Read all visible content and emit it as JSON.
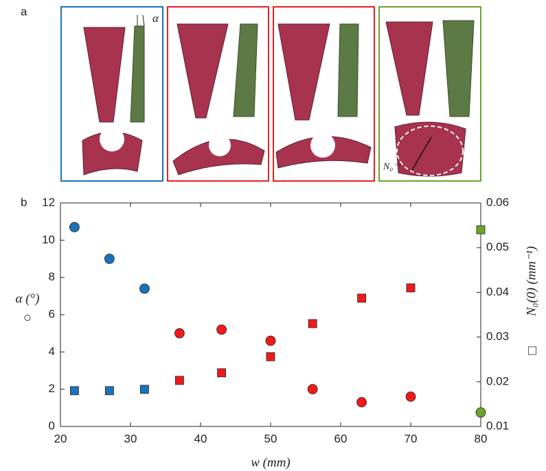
{
  "panel_a": {
    "label": "a",
    "alpha_label": "α",
    "n0_label": "N₀⁻¹"
  },
  "chart_data": {
    "type": "scatter",
    "panel_label": "b",
    "xlabel": "w (mm)",
    "ylabel": "α (°)",
    "ylabel_marker": "○",
    "y2label": "N₀(0) (mm⁻¹)",
    "y2label_marker": "□",
    "x": [
      22,
      27,
      32,
      37,
      43,
      50,
      56,
      63,
      70,
      80
    ],
    "series": [
      {
        "marker": "circle",
        "axis": "y",
        "values": [
          10.7,
          9.0,
          7.4,
          5.0,
          5.2,
          4.6,
          2.0,
          1.3,
          1.6,
          0.75
        ],
        "colors": [
          "#1a72bb",
          "#1a72bb",
          "#1a72bb",
          "#f01a1a",
          "#f01a1a",
          "#f01a1a",
          "#f01a1a",
          "#f01a1a",
          "#f01a1a",
          "#6aa22e"
        ]
      },
      {
        "marker": "square",
        "axis": "y2",
        "values": [
          0.018,
          0.018,
          0.0183,
          0.0203,
          0.022,
          0.0256,
          0.033,
          0.0387,
          0.041,
          0.054
        ],
        "colors": [
          "#1a72bb",
          "#1a72bb",
          "#1a72bb",
          "#f01a1a",
          "#f01a1a",
          "#f01a1a",
          "#f01a1a",
          "#f01a1a",
          "#f01a1a",
          "#6aa22e"
        ]
      }
    ],
    "xlim": [
      20,
      80
    ],
    "xticks": [
      20,
      30,
      40,
      50,
      60,
      70,
      80
    ],
    "ylim": [
      0,
      12
    ],
    "yticks": [
      0,
      2,
      4,
      6,
      8,
      10,
      12
    ],
    "y2lim": [
      0.01,
      0.06
    ],
    "y2ticks": [
      0.01,
      0.02,
      0.03,
      0.04,
      0.05,
      0.06
    ]
  }
}
